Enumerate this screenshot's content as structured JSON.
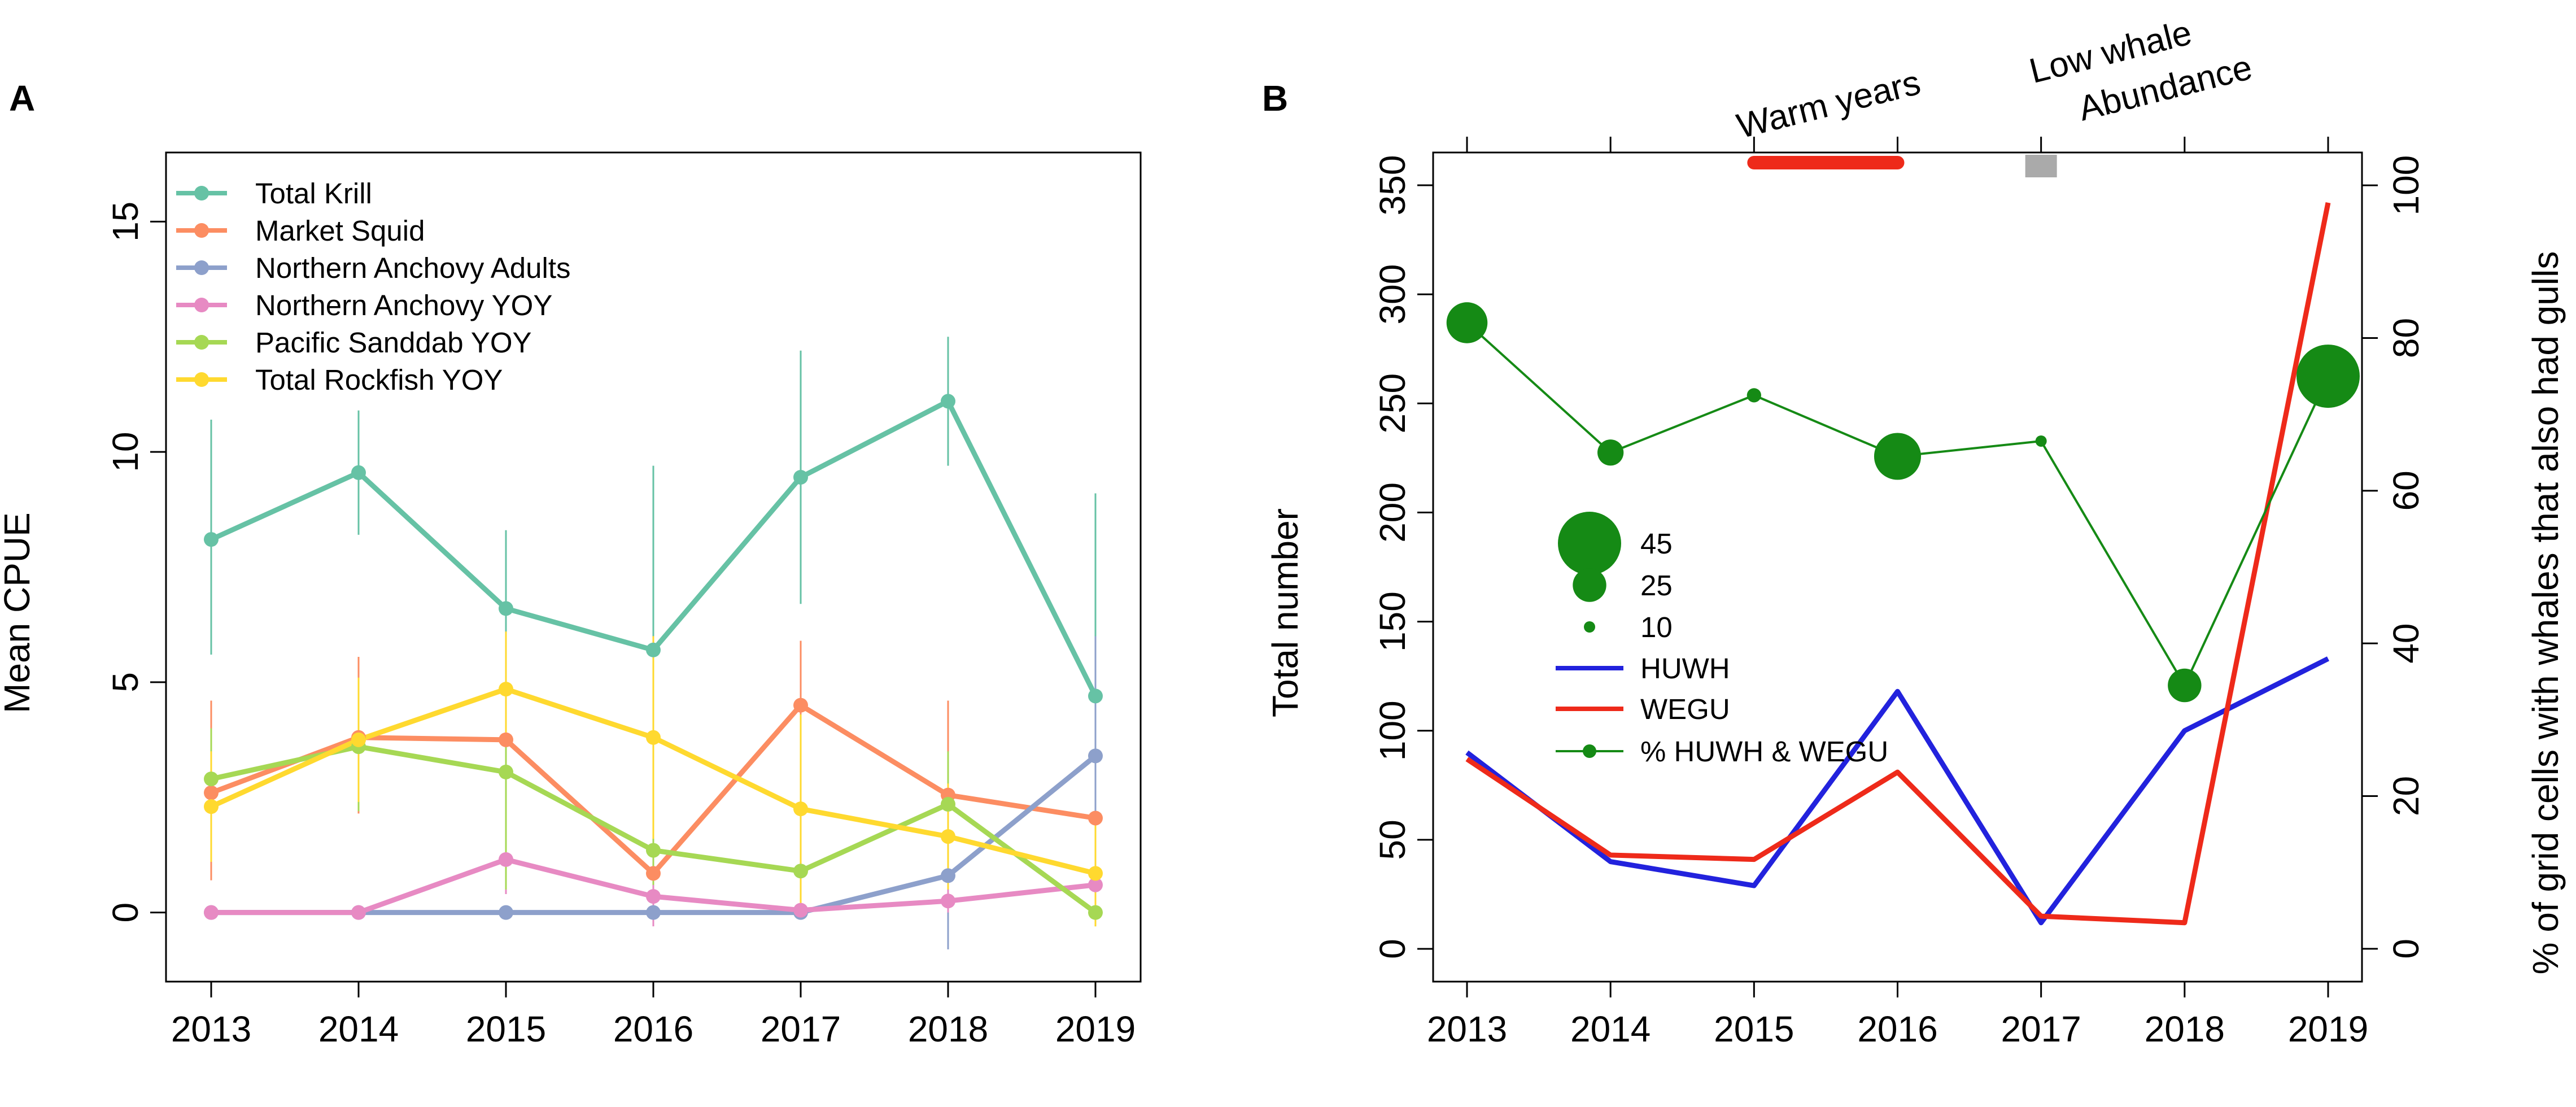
{
  "chart_data": [
    {
      "panel": "A",
      "type": "line",
      "ylabel": "Mean CPUE",
      "xlabel": "",
      "x": [
        2013,
        2014,
        2015,
        2016,
        2017,
        2018,
        2019
      ],
      "x_ticks": [
        "2013",
        "2014",
        "2015",
        "2016",
        "2017",
        "2018",
        "2019"
      ],
      "ylim": [
        -1.5,
        16.5
      ],
      "y_ticks": [
        "0",
        "5",
        "10",
        "15"
      ],
      "legend_position": "top-left",
      "series": [
        {
          "name": "Total Krill",
          "color": "#66c2a5",
          "values": [
            8.1,
            9.55,
            6.6,
            5.7,
            9.45,
            11.1,
            4.7
          ],
          "err_low": [
            5.6,
            8.2,
            4.9,
            1.7,
            6.7,
            9.7,
            0.0
          ],
          "err_high": [
            10.7,
            10.9,
            8.3,
            9.7,
            12.2,
            12.5,
            9.1
          ]
        },
        {
          "name": "Market Squid",
          "color": "#fc8d62",
          "values": [
            2.6,
            3.8,
            3.75,
            0.85,
            4.5,
            2.55,
            2.05
          ],
          "err_low": [
            0.7,
            2.15,
            1.6,
            0.0,
            3.0,
            0.45,
            0.4
          ],
          "err_high": [
            4.6,
            5.55,
            5.9,
            1.9,
            5.9,
            4.6,
            3.7
          ]
        },
        {
          "name": "Northern Anchovy Adults",
          "color": "#8da0cb",
          "values": [
            0.0,
            0.0,
            0.0,
            0.0,
            0.0,
            0.8,
            3.4
          ],
          "err_low": [
            0.0,
            0.0,
            0.0,
            0.0,
            0.0,
            -0.8,
            0.8
          ],
          "err_high": [
            0.0,
            0.0,
            0.0,
            0.0,
            0.0,
            2.5,
            6.0
          ]
        },
        {
          "name": "Northern Anchovy YOY",
          "color": "#e78ac3",
          "values": [
            0.0,
            0.0,
            1.15,
            0.35,
            0.05,
            0.25,
            0.6
          ],
          "err_low": [
            0.0,
            0.0,
            0.4,
            -0.3,
            0.0,
            0.0,
            0.0
          ],
          "err_high": [
            0.0,
            0.0,
            1.9,
            1.0,
            0.1,
            0.5,
            1.2
          ]
        },
        {
          "name": "Pacific Sanddab YOY",
          "color": "#a6d854",
          "values": [
            2.9,
            3.6,
            3.05,
            1.35,
            0.9,
            2.35,
            0.0
          ],
          "err_low": [
            1.1,
            2.2,
            0.5,
            0.6,
            0.4,
            1.2,
            -0.3
          ],
          "err_high": [
            4.0,
            5.0,
            5.6,
            2.1,
            1.4,
            3.5,
            0.3
          ]
        },
        {
          "name": "Total Rockfish YOY",
          "color": "#ffd92f",
          "values": [
            2.3,
            3.75,
            4.85,
            3.8,
            2.25,
            1.65,
            0.85
          ],
          "err_low": [
            1.1,
            2.4,
            3.6,
            1.6,
            0.2,
            0.5,
            -0.3
          ],
          "err_high": [
            3.5,
            5.1,
            6.1,
            6.0,
            4.3,
            2.8,
            2.0
          ]
        }
      ]
    },
    {
      "panel": "B",
      "type": "line",
      "ylabel": "Total number",
      "ylabel_right": "% of grid cells with whales that also had gulls",
      "x": [
        2013,
        2014,
        2015,
        2016,
        2017,
        2018,
        2019
      ],
      "x_ticks": [
        "2013",
        "2014",
        "2015",
        "2016",
        "2017",
        "2018",
        "2019"
      ],
      "ylim": [
        -15,
        365
      ],
      "y_ticks": [
        "0",
        "50",
        "100",
        "150",
        "200",
        "250",
        "300",
        "350"
      ],
      "ylim_right": [
        -4.3,
        104.3
      ],
      "y_ticks_right": [
        "0",
        "20",
        "40",
        "60",
        "80",
        "100"
      ],
      "series": [
        {
          "name": "HUWH",
          "color": "#2222dd",
          "axis": "left",
          "values": [
            90,
            40,
            29,
            118,
            12,
            100,
            133
          ]
        },
        {
          "name": "WEGU",
          "color": "#ee2a1a",
          "axis": "left",
          "values": [
            87,
            43,
            41,
            81,
            15,
            12,
            342
          ]
        },
        {
          "name": "% HUWH & WEGU",
          "color": "#158a15",
          "axis": "right",
          "values": [
            82,
            65,
            72.5,
            64.5,
            66.5,
            34.5,
            75
          ],
          "sizes": [
            30,
            20,
            12,
            34,
            10,
            25,
            45
          ]
        }
      ],
      "size_legend": {
        "values": [
          45,
          25,
          10
        ],
        "labels": [
          "45",
          "25",
          "10"
        ]
      },
      "annotations": [
        {
          "text": "Warm years",
          "x_start": 2015,
          "x_end": 2016,
          "color": "#ee2a1a"
        },
        {
          "text_line1": "Low whale",
          "text_line2": "Abundance",
          "x_start": 2017,
          "x_end": 2017,
          "color": "#aaaaaa"
        }
      ]
    }
  ],
  "panels": {
    "a_letter": "A",
    "b_letter": "B"
  },
  "colors": {
    "axis": "#000000",
    "background": "#ffffff"
  }
}
